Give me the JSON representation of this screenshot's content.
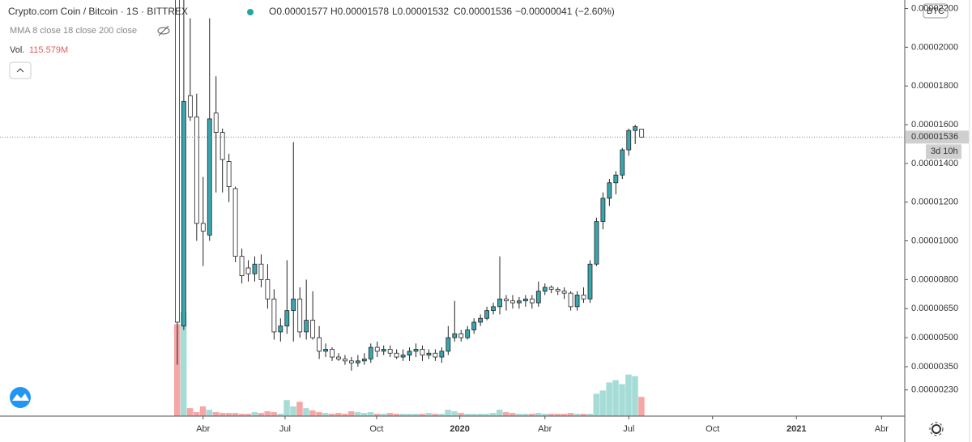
{
  "chart_data": {
    "type": "candlestick",
    "title": "Crypto.com Coin / Bitcoin · 1S · BITTREX",
    "ohlc_header": [
      "O0.00001577",
      "H0.00001578",
      "L0.00001532",
      "C0.00001536",
      "−0.00000041 (−2.60%)"
    ],
    "indicator": "MMA 8 close 18 close 200 close",
    "volume_title": "Vol.",
    "volume_label": "115.579M",
    "currency": "BTC",
    "countdown": "3d 10h",
    "last_price": {
      "value": 1.536e-05,
      "label": "0.00001536"
    },
    "up_color": "#3aa5ad",
    "down_color": "#ffffff",
    "volume_up_color": "#a6dcd6",
    "volume_down_color": "#f5a6a6",
    "open": [
      2.25e-05,
      5.6e-06,
      1.75e-05,
      1.64e-05,
      1.09e-05,
      1.03e-05,
      1.66e-05,
      1.56e-05,
      1.41e-05,
      1.27e-05,
      9.2e-06,
      8.6e-06,
      8.3e-06,
      8.8e-06,
      8e-06,
      7e-06,
      5.3e-06,
      5.6e-06,
      6.4e-06,
      7e-06,
      5.3e-06,
      5.9e-06,
      5e-06,
      4.3e-06,
      4.4e-06,
      4e-06,
      3.9e-06,
      3.8e-06,
      3.7e-06,
      3.8e-06,
      3.9e-06,
      4.5e-06,
      4.3e-06,
      4.4e-06,
      4.2e-06,
      4e-06,
      4.1e-06,
      4.3e-06,
      4.4e-06,
      4.1e-06,
      4.2e-06,
      4e-06,
      4.3e-06,
      5e-06,
      5.2e-06,
      5e-06,
      5.4e-06,
      5.8e-06,
      6e-06,
      6.4e-06,
      6.6e-06,
      7e-06,
      6.9e-06,
      6.8e-06,
      6.9e-06,
      7e-06,
      6.8e-06,
      7.4e-06,
      7.6e-06,
      7.5e-06,
      7.4e-06,
      7.3e-06,
      6.6e-06,
      7.2e-06,
      7e-06,
      8.8e-06,
      1.1e-05,
      1.22e-05,
      1.3e-05,
      1.34e-05,
      1.47e-05,
      1.57e-05,
      1.577e-05
    ],
    "high": [
      2.6e-05,
      2.3e-05,
      2.15e-05,
      1.76e-05,
      1.33e-05,
      2.15e-05,
      1.85e-05,
      1.58e-05,
      1.45e-05,
      1.28e-05,
      9.6e-06,
      9e-06,
      9.2e-06,
      9.3e-06,
      8.8e-06,
      7.5e-06,
      6e-06,
      9e-06,
      1.51e-05,
      7.6e-06,
      8e-06,
      7.4e-06,
      5.6e-06,
      4.7e-06,
      4.5e-06,
      4.2e-06,
      4.1e-06,
      4e-06,
      4.1e-06,
      4.2e-06,
      4.7e-06,
      4.8e-06,
      4.6e-06,
      4.6e-06,
      4.4e-06,
      4.4e-06,
      4.5e-06,
      4.7e-06,
      4.6e-06,
      4.4e-06,
      4.4e-06,
      4.5e-06,
      5.6e-06,
      6.9e-06,
      5.4e-06,
      5.6e-06,
      6e-06,
      6.2e-06,
      6.6e-06,
      6.8e-06,
      9.2e-06,
      7.2e-06,
      7.2e-06,
      7.1e-06,
      7.2e-06,
      7.2e-06,
      7.9e-06,
      7.8e-06,
      7.7e-06,
      7.6e-06,
      7.6e-06,
      7.4e-06,
      7.4e-06,
      7.6e-06,
      9e-06,
      1.12e-05,
      1.25e-05,
      1.32e-05,
      1.36e-05,
      1.48e-05,
      1.58e-05,
      1.6e-05,
      1.578e-05
    ],
    "low": [
      3.6e-06,
      5.4e-06,
      1.62e-05,
      1e-05,
      8.7e-06,
      1e-05,
      1.25e-05,
      1.25e-05,
      1.2e-05,
      8.9e-06,
      7.8e-06,
      7.9e-06,
      7.9e-06,
      7.6e-06,
      6.5e-06,
      4.9e-06,
      4.8e-06,
      5.2e-06,
      4.8e-06,
      5e-06,
      4.9e-06,
      4.9e-06,
      3.9e-06,
      4e-06,
      3.8e-06,
      3.8e-06,
      3.6e-06,
      3.3e-06,
      3.5e-06,
      3.6e-06,
      3.7e-06,
      4e-06,
      4.1e-06,
      4e-06,
      3.9e-06,
      3.8e-06,
      3.8e-06,
      4e-06,
      3.8e-06,
      3.9e-06,
      3.8e-06,
      3.7e-06,
      4.1e-06,
      4.8e-06,
      4.8e-06,
      4.9e-06,
      5.2e-06,
      5.6e-06,
      5.9e-06,
      6.2e-06,
      6.2e-06,
      6.4e-06,
      6.5e-06,
      6.5e-06,
      6.6e-06,
      6.5e-06,
      6.6e-06,
      7.2e-06,
      7.3e-06,
      7.2e-06,
      7e-06,
      6.4e-06,
      6.4e-06,
      6.8e-06,
      6.8e-06,
      8.7e-06,
      1.06e-05,
      1.18e-05,
      1.24e-05,
      1.32e-05,
      1.44e-05,
      1.5e-05,
      1.532e-05
    ],
    "close": [
      5.8e-06,
      1.72e-05,
      1.64e-05,
      1.09e-05,
      1.05e-05,
      1.63e-05,
      1.56e-05,
      1.42e-05,
      1.28e-05,
      9.2e-06,
      8.2e-06,
      8.3e-06,
      8.8e-06,
      8e-06,
      7e-06,
      5.3e-06,
      5.6e-06,
      6.4e-06,
      7e-06,
      5.3e-06,
      5.9e-06,
      5e-06,
      4.3e-06,
      4.4e-06,
      4e-06,
      3.9e-06,
      3.8e-06,
      3.7e-06,
      3.8e-06,
      3.9e-06,
      4.5e-06,
      4.3e-06,
      4.4e-06,
      4.2e-06,
      4e-06,
      4.1e-06,
      4.3e-06,
      4.4e-06,
      4.1e-06,
      4.2e-06,
      4e-06,
      4.3e-06,
      5e-06,
      5.2e-06,
      5e-06,
      5.4e-06,
      5.8e-06,
      6e-06,
      6.4e-06,
      6.6e-06,
      7e-06,
      6.9e-06,
      6.8e-06,
      6.9e-06,
      7e-06,
      6.8e-06,
      7.4e-06,
      7.6e-06,
      7.5e-06,
      7.4e-06,
      7.3e-06,
      6.6e-06,
      7.2e-06,
      7e-06,
      8.8e-06,
      1.1e-05,
      1.22e-05,
      1.3e-05,
      1.34e-05,
      1.47e-05,
      1.57e-05,
      1.59e-05,
      1.536e-05
    ],
    "volume": [
      552000000.0,
      624000000.0,
      48000000.0,
      24000000.0,
      58000000.0,
      38000000.0,
      24000000.0,
      19000000.0,
      19000000.0,
      19000000.0,
      14000000.0,
      14000000.0,
      24000000.0,
      19000000.0,
      29000000.0,
      24000000.0,
      14000000.0,
      96000000.0,
      58000000.0,
      86000000.0,
      48000000.0,
      34000000.0,
      24000000.0,
      19000000.0,
      14000000.0,
      19000000.0,
      14000000.0,
      29000000.0,
      24000000.0,
      19000000.0,
      24000000.0,
      14000000.0,
      14000000.0,
      19000000.0,
      14000000.0,
      14000000.0,
      14000000.0,
      14000000.0,
      14000000.0,
      19000000.0,
      14000000.0,
      14000000.0,
      38000000.0,
      29000000.0,
      19000000.0,
      14000000.0,
      14000000.0,
      14000000.0,
      14000000.0,
      19000000.0,
      38000000.0,
      24000000.0,
      19000000.0,
      14000000.0,
      14000000.0,
      14000000.0,
      19000000.0,
      14000000.0,
      14000000.0,
      14000000.0,
      14000000.0,
      19000000.0,
      14000000.0,
      14000000.0,
      14000000.0,
      134000000.0,
      154000000.0,
      202000000.0,
      216000000.0,
      192000000.0,
      250000000.0,
      240000000.0,
      115579000
    ],
    "volume_ylim": [
      0,
      2500000000
    ],
    "xlim": [
      -27.5,
      112.8
    ],
    "xticks": [
      {
        "value": 4,
        "label": "Abr"
      },
      {
        "value": 16.7,
        "label": "Jul"
      },
      {
        "value": 30.9,
        "label": "Oct"
      },
      {
        "value": 43.8,
        "label": "2020"
      },
      {
        "value": 57,
        "label": "Abr"
      },
      {
        "value": 70,
        "label": "Jul"
      },
      {
        "value": 83,
        "label": "Oct"
      },
      {
        "value": 96,
        "label": "2021"
      },
      {
        "value": 109.2,
        "label": "Abr"
      }
    ],
    "ylim": [
      9.5e-07,
      2.244e-05
    ],
    "yticks": [
      {
        "value": 2.3e-06,
        "label": "0.00000230"
      },
      {
        "value": 3.5e-06,
        "label": "0.00000350"
      },
      {
        "value": 5e-06,
        "label": "0.00000500"
      },
      {
        "value": 6.5e-06,
        "label": "0.00000650"
      },
      {
        "value": 8e-06,
        "label": "0.00000800"
      },
      {
        "value": 1e-05,
        "label": "0.00001000"
      },
      {
        "value": 1.2e-05,
        "label": "0.00001200"
      },
      {
        "value": 1.4e-05,
        "label": "0.00001400"
      },
      {
        "value": 1.6e-05,
        "label": "0.00001600"
      },
      {
        "value": 1.8e-05,
        "label": "0.00001800"
      },
      {
        "value": 2e-05,
        "label": "0.00002000"
      },
      {
        "value": 2.2e-05,
        "label": "0.00002200"
      }
    ]
  }
}
